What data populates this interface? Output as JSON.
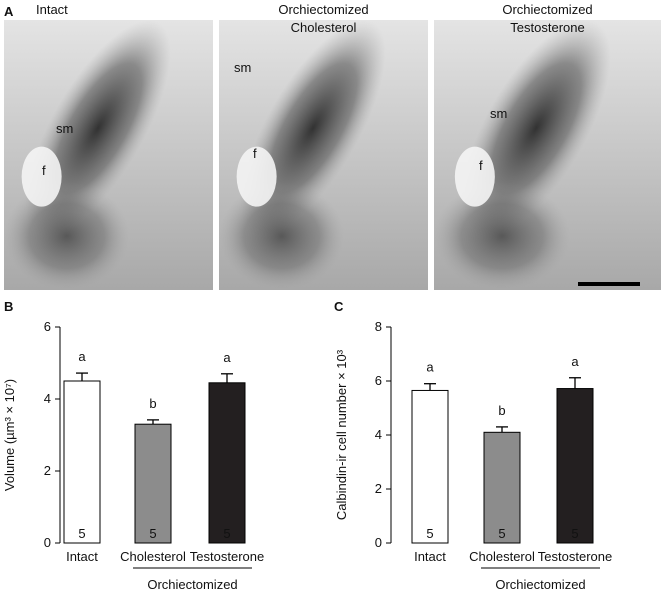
{
  "micrographs": {
    "panel_label": "A",
    "scale_bar": true,
    "panels": [
      {
        "title": [
          "Intact"
        ],
        "labels": [
          "sm",
          "f"
        ]
      },
      {
        "title": [
          "Orchiectomized",
          "Cholesterol"
        ],
        "labels": [
          "sm",
          "f"
        ]
      },
      {
        "title": [
          "Orchiectomized",
          "Testosterone"
        ],
        "labels": [
          "sm",
          "f"
        ]
      }
    ]
  },
  "chart_data": [
    {
      "type": "bar",
      "panel_label": "B",
      "y_label": "Volume (µm³ × 10⁷)",
      "categories": [
        "Intact",
        "Cholesterol",
        "Testosterone"
      ],
      "group_label": "Orchiectomized",
      "values": [
        4.5,
        3.3,
        4.45
      ],
      "errors": [
        0.22,
        0.12,
        0.25
      ],
      "colors": [
        "#ffffff",
        "#8c8c8c",
        "#231f20"
      ],
      "letters": [
        "a",
        "b",
        "a"
      ],
      "n": [
        5,
        5,
        5
      ],
      "ylim": [
        0,
        6
      ],
      "yticks": [
        0,
        2,
        4,
        6
      ]
    },
    {
      "type": "bar",
      "panel_label": "C",
      "y_label": "Calbindin-ir cell number × 10³",
      "categories": [
        "Intact",
        "Cholesterol",
        "Testosterone"
      ],
      "group_label": "Orchiectomized",
      "values": [
        5.65,
        4.1,
        5.72
      ],
      "errors": [
        0.25,
        0.2,
        0.4
      ],
      "colors": [
        "#ffffff",
        "#8c8c8c",
        "#231f20"
      ],
      "letters": [
        "a",
        "b",
        "a"
      ],
      "n": [
        5,
        5,
        5
      ],
      "ylim": [
        0,
        8
      ],
      "yticks": [
        0,
        2,
        4,
        6,
        8
      ]
    }
  ]
}
